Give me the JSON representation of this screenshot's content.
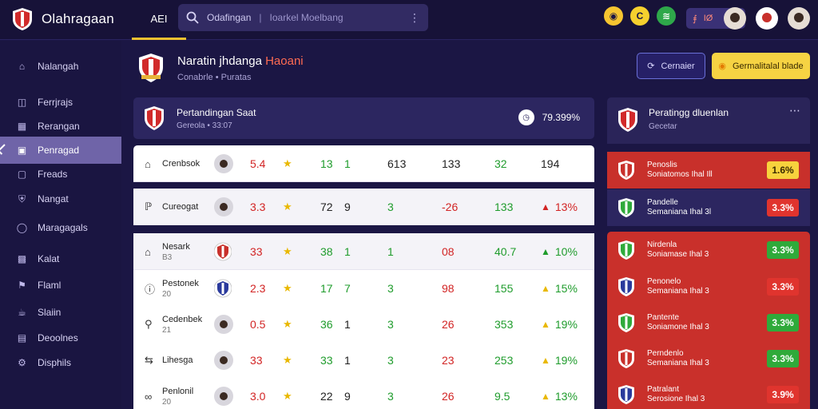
{
  "app": {
    "name": "Olahragaan",
    "tab": "AEI"
  },
  "search": {
    "query": "Odafingan",
    "placeholder": "Ioarkel Moelbang"
  },
  "notif": {
    "label": "IØ"
  },
  "sidebar": {
    "items": [
      {
        "label": "Nalangah",
        "icon": "home-icon"
      },
      {
        "label": "Ferrjrajs",
        "icon": "list-icon"
      },
      {
        "label": "Rerangan",
        "icon": "grid-icon"
      },
      {
        "label": "Penragad",
        "icon": "folder-icon",
        "active": true
      },
      {
        "label": "Freads",
        "icon": "box-icon"
      },
      {
        "label": "Nangat",
        "icon": "shield-icon"
      },
      {
        "label": "Maragagals",
        "icon": "globe-icon"
      },
      {
        "label": "Kalat",
        "icon": "doc-icon"
      },
      {
        "label": "Flaml",
        "icon": "flag-icon"
      },
      {
        "label": "Slaiin",
        "icon": "cup-icon"
      },
      {
        "label": "Deoolnes",
        "icon": "archive-icon"
      },
      {
        "label": "Disphils",
        "icon": "gear-icon"
      }
    ]
  },
  "page": {
    "title_main": "Naratin jhdanga",
    "title_accent": "Haoani",
    "subtitle": "Conabrle  •  Puratas"
  },
  "actions": {
    "secondary": "Cernaier",
    "primary": "Germalitalal blade"
  },
  "match": {
    "title": "Pertandingan Saat",
    "subtitle": "Gereola • 33:07",
    "value": "79.399%"
  },
  "table": {
    "rows": [
      {
        "name": "Crenbsok",
        "sub": "",
        "c1": "5.4",
        "c3": "13",
        "c4": "1",
        "c5": "613",
        "c6": "133",
        "c7": "32",
        "c8": "194",
        "c8tag": ""
      },
      {
        "name": "Cureogat",
        "sub": "",
        "c1": "3.3",
        "c3": "72",
        "c4": "9",
        "c5": "3",
        "c6": "-26",
        "c7": "133",
        "c8": "13%",
        "c8tag": "▲"
      },
      {
        "name": "Nesark",
        "sub": "B3",
        "c1": "33",
        "c3": "38",
        "c4": "1",
        "c5": "1",
        "c6": "08",
        "c7": "40.7",
        "c8": "10%",
        "c8tag": "▲"
      },
      {
        "name": "Pestonek",
        "sub": "20",
        "c1": "2.3",
        "c3": "17",
        "c4": "7",
        "c5": "3",
        "c6": "98",
        "c7": "155",
        "c8": "15%",
        "c8tag": "▲"
      },
      {
        "name": "Cedenbek",
        "sub": "21",
        "c1": "0.5",
        "c3": "36",
        "c4": "1",
        "c5": "3",
        "c6": "26",
        "c7": "353",
        "c8": "19%",
        "c8tag": "▲"
      },
      {
        "name": "Lihesga",
        "sub": "",
        "c1": "33",
        "c3": "33",
        "c4": "1",
        "c5": "3",
        "c6": "23",
        "c7": "253",
        "c8": "19%",
        "c8tag": "▲"
      },
      {
        "name": "Penlonil",
        "sub": "20",
        "c1": "3.0",
        "c3": "22",
        "c4": "9",
        "c5": "3",
        "c6": "26",
        "c7": "9.5",
        "c8": "13%",
        "c8tag": "▲"
      }
    ]
  },
  "right_panel": {
    "title": "Peratingg dluenlan",
    "subtitle": "Gecetar",
    "cards": [
      {
        "l1": "Penoslis",
        "l2": "Soniatomos Ihal Ill",
        "value": "1.6%",
        "bg": "#c8302b",
        "pill": "#f7d23d",
        "pillc": "#3a2b00"
      },
      {
        "l1": "Pandelle",
        "l2": "Semaniana Ihal 3l",
        "value": "3.3%",
        "bg": "#2c2660",
        "pill": "#e0342e",
        "pillc": "#fff"
      },
      {
        "l1": "Nirdenla",
        "l2": "Soniamase Ihal 3",
        "value": "3.3%",
        "bg": "#c9302b",
        "pill": "#2faa3a",
        "pillc": "#fff"
      },
      {
        "l1": "Penonelo",
        "l2": "Semaniana Ihal 3",
        "value": "3.3%",
        "bg": "#c9302b",
        "pill": "#e0342e",
        "pillc": "#fff"
      },
      {
        "l1": "Pantente",
        "l2": "Soniamone Ihal 3",
        "value": "3.3%",
        "bg": "#c9302b",
        "pill": "#2faa3a",
        "pillc": "#fff"
      },
      {
        "l1": "Perndenlo",
        "l2": "Semaniana Ihal 3",
        "value": "3.3%",
        "bg": "#c9302b",
        "pill": "#2faa3a",
        "pillc": "#fff"
      },
      {
        "l1": "Patralant",
        "l2": "Serosione Ihal 3",
        "value": "3.9%",
        "bg": "#c9302b",
        "pill": "#e0342e",
        "pillc": "#fff"
      }
    ]
  }
}
